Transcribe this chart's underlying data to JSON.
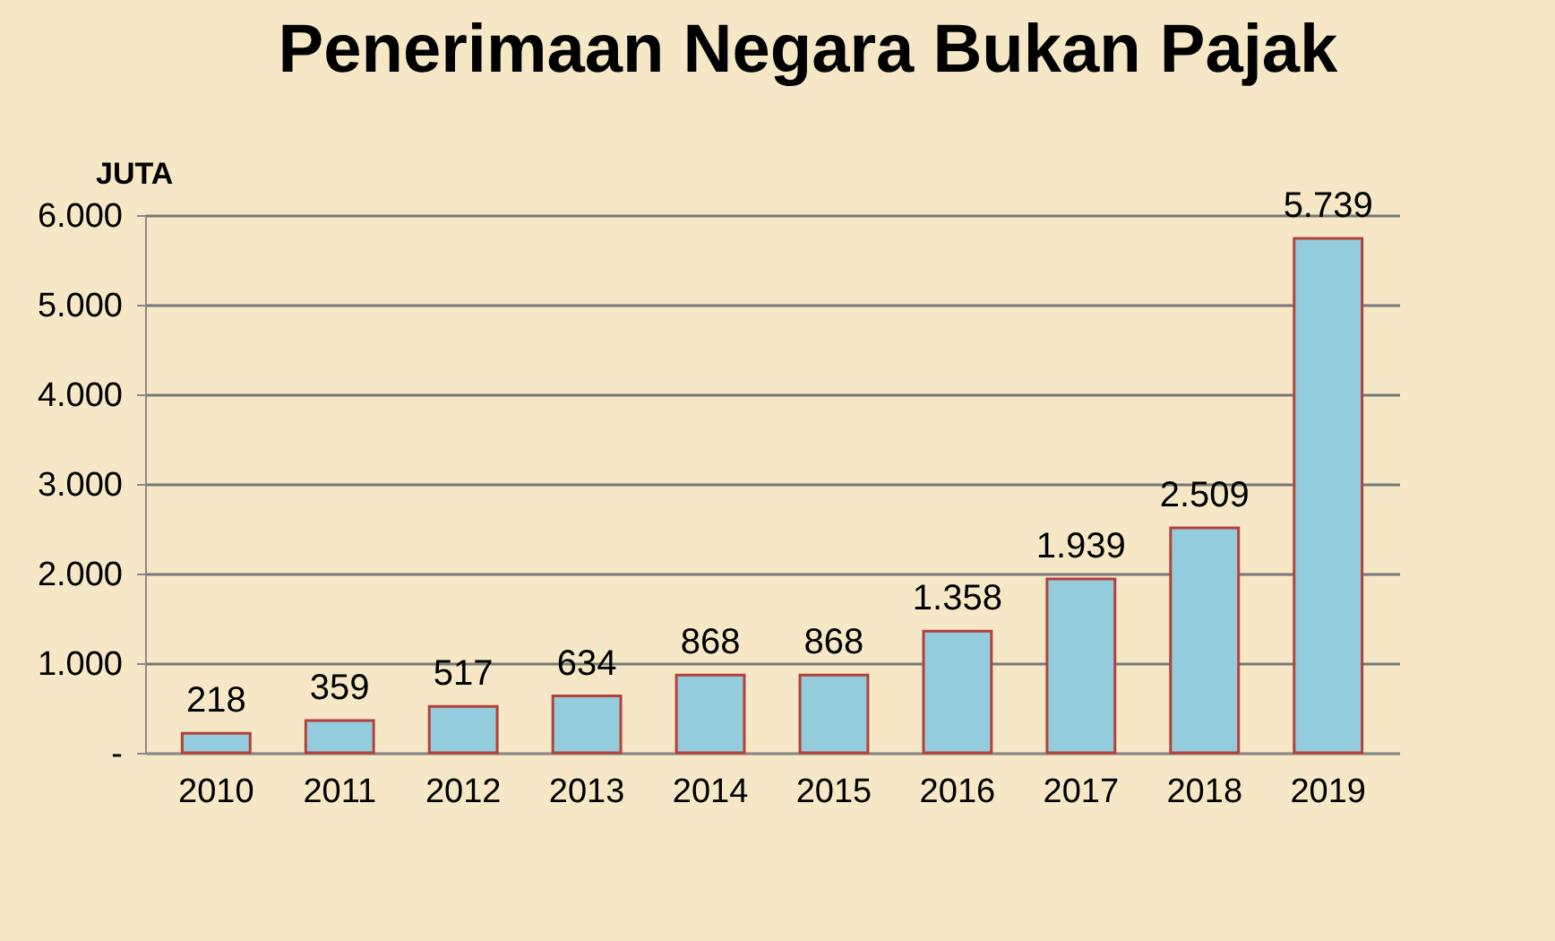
{
  "chart_data": {
    "type": "bar",
    "title": "Penerimaan Negara Bukan Pajak",
    "ylabel": "JUTA",
    "categories": [
      "2010",
      "2011",
      "2012",
      "2013",
      "2014",
      "2015",
      "2016",
      "2017",
      "2018",
      "2019"
    ],
    "values": [
      218,
      359,
      517,
      634,
      868,
      868,
      1358,
      1939,
      2509,
      5739
    ],
    "value_labels": [
      "218",
      "359",
      "517",
      "634",
      "868",
      "868",
      "1.358",
      "1.939",
      "2.509",
      "5.739"
    ],
    "color": "#93cddd",
    "ylim": [
      0,
      6000
    ],
    "yticks": [
      {
        "value": 0,
        "label": "-"
      },
      {
        "value": 1000,
        "label": "1.000"
      },
      {
        "value": 2000,
        "label": "2.000"
      },
      {
        "value": 3000,
        "label": "3.000"
      },
      {
        "value": 4000,
        "label": "4.000"
      },
      {
        "value": 5000,
        "label": "5.000"
      },
      {
        "value": 6000,
        "label": "6.000"
      }
    ],
    "grid": true
  }
}
